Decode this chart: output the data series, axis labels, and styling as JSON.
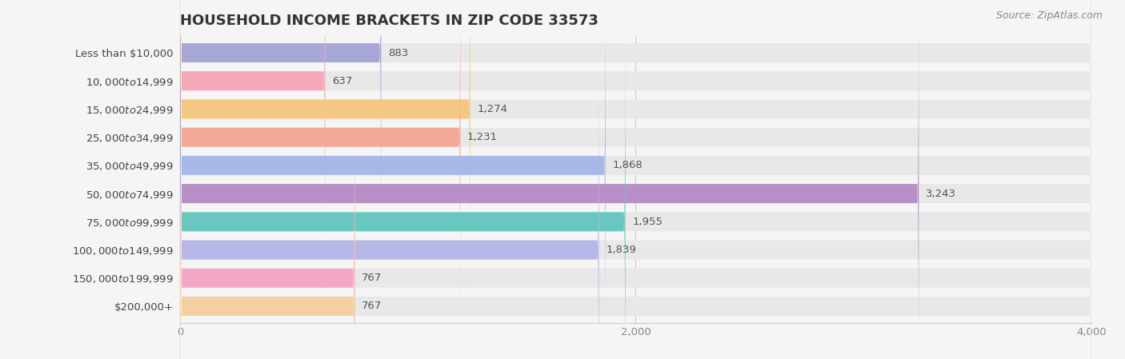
{
  "title": "HOUSEHOLD INCOME BRACKETS IN ZIP CODE 33573",
  "source": "Source: ZipAtlas.com",
  "categories": [
    "Less than $10,000",
    "$10,000 to $14,999",
    "$15,000 to $24,999",
    "$25,000 to $34,999",
    "$35,000 to $49,999",
    "$50,000 to $74,999",
    "$75,000 to $99,999",
    "$100,000 to $149,999",
    "$150,000 to $199,999",
    "$200,000+"
  ],
  "values": [
    883,
    637,
    1274,
    1231,
    1868,
    3243,
    1955,
    1839,
    767,
    767
  ],
  "bar_colors": [
    "#a8a8d8",
    "#f4a8b8",
    "#f4c882",
    "#f4a898",
    "#a8b8e8",
    "#b890c8",
    "#68c8c0",
    "#b8b8e8",
    "#f4a8c8",
    "#f4d0a0"
  ],
  "xlim": [
    0,
    4000
  ],
  "xticks": [
    0,
    2000,
    4000
  ],
  "background_color": "#f5f5f5",
  "bar_background_color": "#e8e8e8",
  "title_fontsize": 13,
  "label_fontsize": 9.5,
  "value_fontsize": 9.5,
  "source_fontsize": 9
}
